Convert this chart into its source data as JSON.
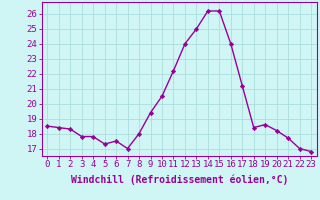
{
  "x": [
    0,
    1,
    2,
    3,
    4,
    5,
    6,
    7,
    8,
    9,
    10,
    11,
    12,
    13,
    14,
    15,
    16,
    17,
    18,
    19,
    20,
    21,
    22,
    23
  ],
  "y": [
    18.5,
    18.4,
    18.3,
    17.8,
    17.8,
    17.3,
    17.5,
    17.0,
    18.0,
    19.4,
    20.5,
    22.2,
    24.0,
    25.0,
    26.2,
    26.2,
    24.0,
    21.2,
    18.4,
    18.6,
    18.2,
    17.7,
    17.0,
    16.8
  ],
  "line_color": "#990099",
  "marker": "D",
  "marker_size": 2.2,
  "bg_color": "#cff5f5",
  "grid_color": "#aadddd",
  "xlabel": "Windchill (Refroidissement éolien,°C)",
  "xlabel_fontsize": 7,
  "xtick_labels": [
    "0",
    "1",
    "2",
    "3",
    "4",
    "5",
    "6",
    "7",
    "8",
    "9",
    "10",
    "11",
    "12",
    "13",
    "14",
    "15",
    "16",
    "17",
    "18",
    "19",
    "20",
    "21",
    "22",
    "23"
  ],
  "ylim": [
    16.5,
    26.8
  ],
  "xlim": [
    -0.5,
    23.5
  ],
  "tick_color": "#990099",
  "tick_fontsize": 6.5,
  "yticks": [
    17,
    18,
    19,
    20,
    21,
    22,
    23,
    24,
    25,
    26
  ],
  "linewidth": 1.0
}
